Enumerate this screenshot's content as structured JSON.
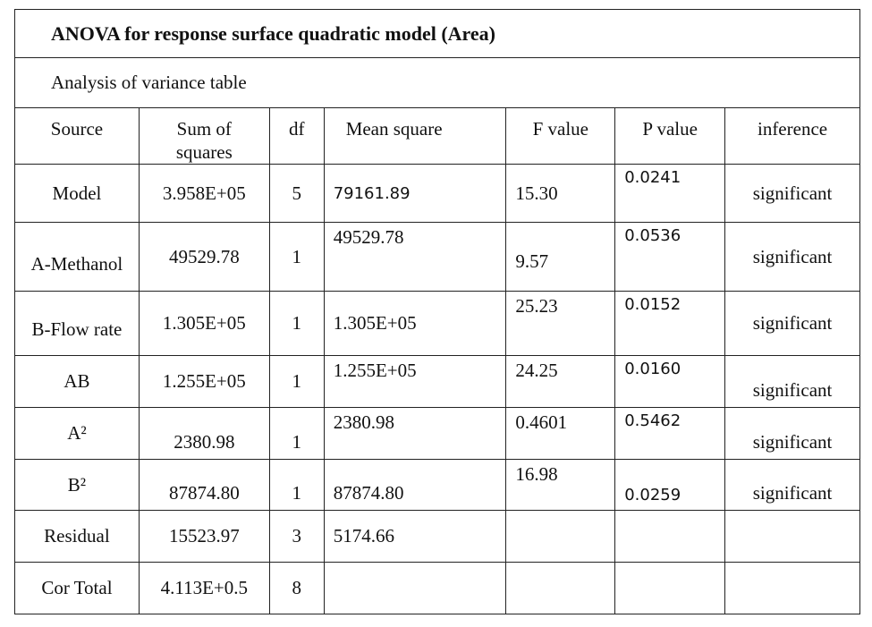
{
  "header": {
    "title": "ANOVA for response surface quadratic model (Area)",
    "subtitle": "Analysis of variance table"
  },
  "table": {
    "columns": [
      "Source",
      "Sum of squares",
      "df",
      "Mean square",
      "F value",
      "P value",
      "inference"
    ],
    "rows": [
      [
        "Model",
        "3.958E+05",
        "5",
        "79161.89",
        "15.30",
        "0.0241",
        "significant"
      ],
      [
        "A-Methanol",
        "49529.78",
        "1",
        "49529.78",
        "9.57",
        "0.0536",
        "significant"
      ],
      [
        "B-Flow rate",
        "1.305E+05",
        "1",
        "1.305E+05",
        "25.23",
        "0.0152",
        "significant"
      ],
      [
        "AB",
        "1.255E+05",
        "1",
        "1.255E+05",
        "24.25",
        "0.0160",
        "significant"
      ],
      [
        "A²",
        "2380.98",
        "1",
        "2380.98",
        "0.4601",
        "0.5462",
        "significant"
      ],
      [
        "B²",
        "87874.80",
        "1",
        "87874.80",
        "16.98",
        "0.0259",
        "significant"
      ],
      [
        "Residual",
        "15523.97",
        "3",
        "5174.66"
      ],
      [
        "Cor Total",
        "4.113E+0.5",
        "8"
      ]
    ]
  }
}
